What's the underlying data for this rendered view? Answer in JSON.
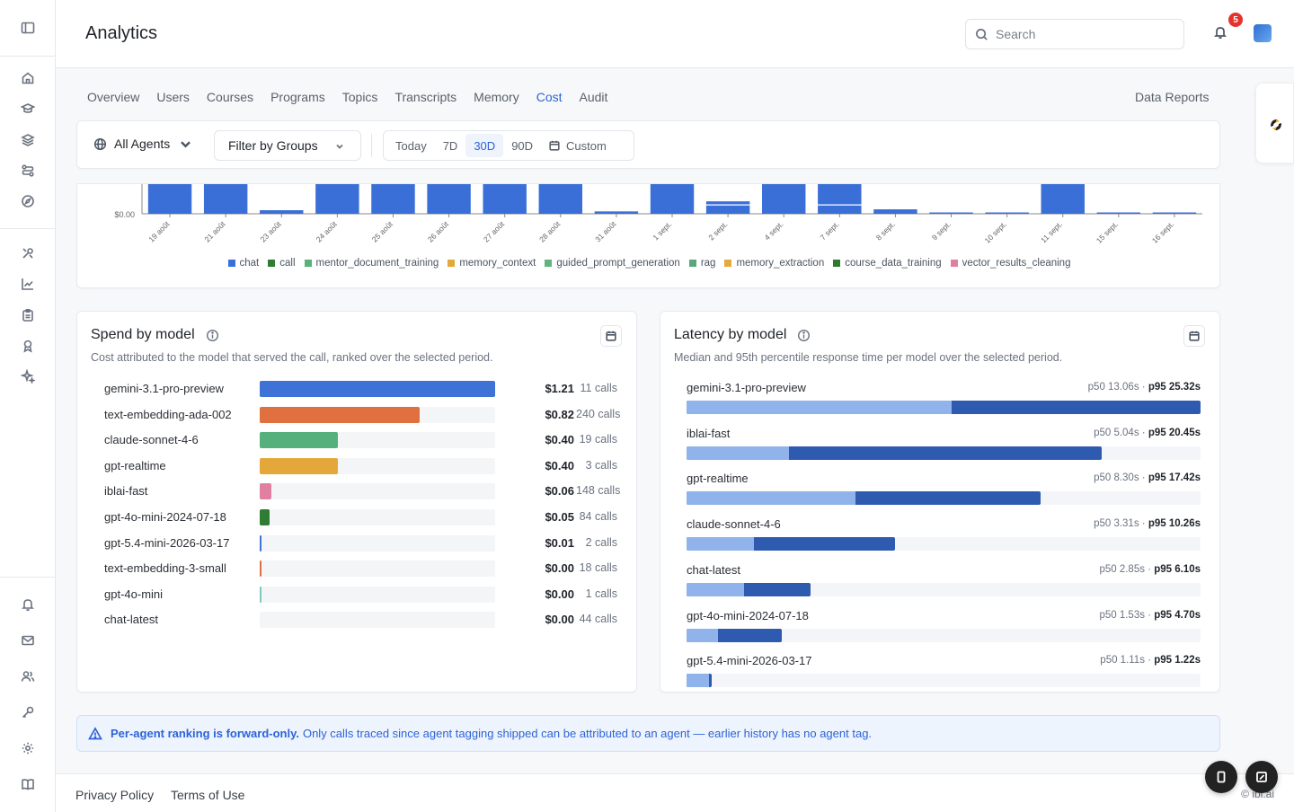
{
  "header": {
    "title": "Analytics",
    "search_placeholder": "Search",
    "notification_count": "5"
  },
  "tabs": [
    {
      "label": "Overview"
    },
    {
      "label": "Users"
    },
    {
      "label": "Courses"
    },
    {
      "label": "Programs"
    },
    {
      "label": "Topics"
    },
    {
      "label": "Transcripts"
    },
    {
      "label": "Memory"
    },
    {
      "label": "Cost"
    },
    {
      "label": "Audit"
    }
  ],
  "active_tab": "Cost",
  "data_reports_label": "Data Reports",
  "filters": {
    "agents_label": "All Agents",
    "groups_label": "Filter by Groups",
    "ranges": [
      "Today",
      "7D",
      "30D",
      "90D",
      "Custom"
    ],
    "active_range": "30D"
  },
  "chart_data": [
    {
      "type": "bar",
      "stacked": true,
      "y_tick_label": "$0.00",
      "categories": [
        "19 août",
        "21 août",
        "23 août",
        "24 août",
        "25 août",
        "26 août",
        "27 août",
        "28 août",
        "31 août",
        "1 sept.",
        "2 sept.",
        "4 sept.",
        "7 sept.",
        "8 sept.",
        "9 sept.",
        "10 sept.",
        "11 sept.",
        "15 sept.",
        "16 sept."
      ],
      "relative_values": [
        1,
        1,
        0.12,
        1,
        1,
        1,
        1,
        1,
        0.08,
        1,
        0.42,
        1,
        1,
        0.15,
        0.04,
        0.03,
        1,
        0.03,
        0.03
      ],
      "legend": [
        "chat",
        "call",
        "mentor_document_training",
        "memory_context",
        "guided_prompt_generation",
        "rag",
        "memory_extraction",
        "course_data_training",
        "vector_results_cleaning"
      ],
      "legend_colors": [
        "#3b6fd8",
        "#2f7d32",
        "#5ab07a",
        "#e4a73a",
        "#63b381",
        "#58a97a",
        "#e6a93c",
        "#2c7a2e",
        "#e07fa0"
      ]
    },
    {
      "type": "bar",
      "orientation": "horizontal",
      "title": "Spend by model",
      "subtitle": "Cost attributed to the model that served the call, ranked over the selected period.",
      "rows": [
        {
          "model": "gemini-3.1-pro-preview",
          "cost": "$1.21",
          "value": 1.21,
          "calls": "11 calls",
          "color": "#3e72d6"
        },
        {
          "model": "text-embedding-ada-002",
          "cost": "$0.82",
          "value": 0.82,
          "calls": "240 calls",
          "color": "#e0703f"
        },
        {
          "model": "claude-sonnet-4-6",
          "cost": "$0.40",
          "value": 0.4,
          "calls": "19 calls",
          "color": "#55b07c"
        },
        {
          "model": "gpt-realtime",
          "cost": "$0.40",
          "value": 0.4,
          "calls": "3 calls",
          "color": "#e4a83a"
        },
        {
          "model": "iblai-fast",
          "cost": "$0.06",
          "value": 0.06,
          "calls": "148 calls",
          "color": "#e07fa0"
        },
        {
          "model": "gpt-4o-mini-2024-07-18",
          "cost": "$0.05",
          "value": 0.05,
          "calls": "84 calls",
          "color": "#2e7d32"
        },
        {
          "model": "gpt-5.4-mini-2026-03-17",
          "cost": "$0.01",
          "value": 0.01,
          "calls": "2 calls",
          "color": "#3e72d6"
        },
        {
          "model": "text-embedding-3-small",
          "cost": "$0.00",
          "value": 0.004,
          "calls": "18 calls",
          "color": "#e0703f"
        },
        {
          "model": "gpt-4o-mini",
          "cost": "$0.00",
          "value": 0.003,
          "calls": "1 calls",
          "color": "#7fc8c0"
        },
        {
          "model": "chat-latest",
          "cost": "$0.00",
          "value": 0.0,
          "calls": "44 calls",
          "color": "#3e72d6"
        }
      ]
    },
    {
      "type": "bar",
      "orientation": "horizontal",
      "title": "Latency by model",
      "subtitle": "Median and 95th percentile response time per model over the selected period.",
      "rows": [
        {
          "model": "gemini-3.1-pro-preview",
          "p50_label": "p50 13.06s",
          "p95_label": "p95 25.32s",
          "p50": 13.06,
          "p95": 25.32
        },
        {
          "model": "iblai-fast",
          "p50_label": "p50 5.04s",
          "p95_label": "p95 20.45s",
          "p50": 5.04,
          "p95": 20.45
        },
        {
          "model": "gpt-realtime",
          "p50_label": "p50 8.30s",
          "p95_label": "p95 17.42s",
          "p50": 8.3,
          "p95": 17.42
        },
        {
          "model": "claude-sonnet-4-6",
          "p50_label": "p50 3.31s",
          "p95_label": "p95 10.26s",
          "p50": 3.31,
          "p95": 10.26
        },
        {
          "model": "chat-latest",
          "p50_label": "p50 2.85s",
          "p95_label": "p95 6.10s",
          "p50": 2.85,
          "p95": 6.1
        },
        {
          "model": "gpt-4o-mini-2024-07-18",
          "p50_label": "p50 1.53s",
          "p95_label": "p95 4.70s",
          "p50": 1.53,
          "p95": 4.7
        },
        {
          "model": "gpt-5.4-mini-2026-03-17",
          "p50_label": "p50 1.11s",
          "p95_label": "p95 1.22s",
          "p50": 1.11,
          "p95": 1.22
        }
      ]
    }
  ],
  "notice": {
    "bold": "Per-agent ranking is forward-only.",
    "text": "Only calls traced since agent tagging shipped can be attributed to an agent — earlier history has no agent tag."
  },
  "footer": {
    "privacy": "Privacy Policy",
    "terms": "Terms of Use",
    "copyright": "© ibl.ai"
  }
}
